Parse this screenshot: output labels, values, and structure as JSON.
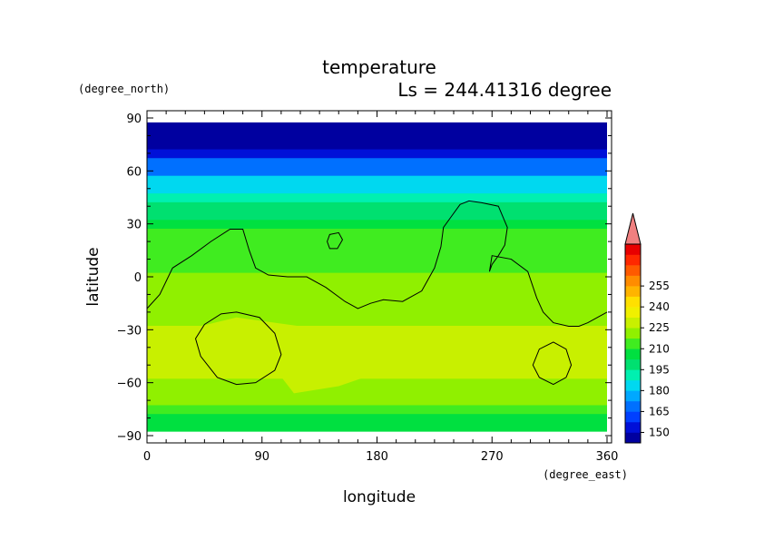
{
  "chart_data": {
    "type": "heatmap",
    "title": "temperature",
    "subtitle": "Ls = 244.41316 degree",
    "xlabel": "longitude",
    "ylabel": "latitude",
    "x_units": "(degree_east)",
    "y_units": "(degree_north)",
    "xlim": [
      0,
      360
    ],
    "ylim": [
      -90,
      90
    ],
    "x_ticks": [
      0,
      90,
      180,
      270,
      360
    ],
    "y_ticks": [
      90,
      60,
      30,
      0,
      -30,
      -60,
      -90
    ],
    "x_tick_labels": [
      "0",
      "90",
      "180",
      "270",
      "360"
    ],
    "y_tick_labels": [
      "90",
      "60",
      "30",
      "0",
      "−30",
      "−60",
      "−90"
    ],
    "colorbar": {
      "min": 142.5,
      "step": 7.5,
      "labels": [
        "150",
        "165",
        "180",
        "195",
        "210",
        "225",
        "240",
        "255"
      ],
      "label_values": [
        150,
        165,
        180,
        195,
        210,
        225,
        240,
        255
      ],
      "colors": [
        "#0000a0",
        "#0010d8",
        "#0040ff",
        "#0070ff",
        "#00a8ff",
        "#00d8f0",
        "#00f0b0",
        "#00e070",
        "#00e040",
        "#40ec20",
        "#90f000",
        "#c8f000",
        "#f0f000",
        "#ffe000",
        "#ffb400",
        "#ff8c00",
        "#ff5a00",
        "#ff2800",
        "#e80000"
      ],
      "extend_color": "#f08080"
    },
    "zonal_profile": {
      "latitudes": [
        -85,
        -80,
        -75,
        -70,
        -65,
        -60,
        -55,
        -50,
        -45,
        -40,
        -35,
        -30,
        -25,
        -20,
        -15,
        -10,
        -5,
        0,
        5,
        10,
        15,
        20,
        25,
        30,
        35,
        40,
        45,
        50,
        55,
        60,
        65,
        70,
        75,
        80,
        85
      ],
      "temperature": [
        206,
        209,
        212,
        218,
        222,
        224,
        225,
        226,
        227,
        227,
        226,
        226,
        224,
        223,
        222,
        221,
        220,
        219,
        217,
        215,
        214,
        213,
        210,
        205,
        200,
        195,
        190,
        185,
        180,
        172,
        165,
        150,
        145,
        144,
        143
      ]
    },
    "warm_regions": [
      {
        "lon": [
          0,
          30,
          70,
          120,
          160,
          200,
          220,
          190,
          150,
          115,
          100,
          40,
          0
        ],
        "lat": [
          -34,
          -30,
          -23,
          -28,
          -35,
          -36,
          -45,
          -52,
          -62,
          -66,
          -52,
          -48,
          -44
        ],
        "value": 229
      },
      {
        "lon": [
          325,
          345,
          360,
          350,
          330
        ],
        "lat": [
          -30,
          -30,
          -45,
          -55,
          -50
        ],
        "value": 229
      }
    ],
    "contours": [
      {
        "level": 225,
        "lon": [
          0,
          10,
          20,
          35,
          50,
          65,
          75,
          80,
          85,
          95,
          110,
          125,
          140,
          155,
          165,
          175,
          185,
          200,
          215,
          225,
          230,
          232,
          238,
          245,
          252,
          262,
          275,
          282,
          280,
          275,
          270,
          268,
          270,
          285,
          298,
          305,
          310,
          318,
          330,
          338,
          345,
          360
        ],
        "lat": [
          -18,
          -10,
          5,
          12,
          20,
          27,
          27,
          15,
          5,
          1,
          0,
          0,
          -6,
          -14,
          -18,
          -15,
          -13,
          -14,
          -8,
          5,
          17,
          28,
          34,
          41,
          43,
          42,
          40,
          28,
          18,
          12,
          7,
          3,
          12,
          10,
          3,
          -12,
          -20,
          -26,
          -28,
          -28,
          -26,
          -20
        ]
      },
      {
        "level": 225,
        "lon": [
          143,
          150,
          153,
          149,
          143,
          141,
          143
        ],
        "lat": [
          24,
          25,
          21,
          16,
          16,
          20,
          24
        ]
      },
      {
        "level": 240,
        "lon": [
          70,
          88,
          100,
          105,
          100,
          85,
          70,
          55,
          42,
          38,
          45,
          58,
          70
        ],
        "lat": [
          -20,
          -23,
          -32,
          -44,
          -53,
          -60,
          -61,
          -57,
          -45,
          -35,
          -27,
          -21,
          -20
        ]
      },
      {
        "level": 240,
        "lon": [
          318,
          328,
          332,
          328,
          318,
          307,
          302,
          307,
          318
        ],
        "lat": [
          -37,
          -41,
          -50,
          -57,
          -61,
          -57,
          -50,
          -41,
          -37
        ]
      }
    ]
  }
}
